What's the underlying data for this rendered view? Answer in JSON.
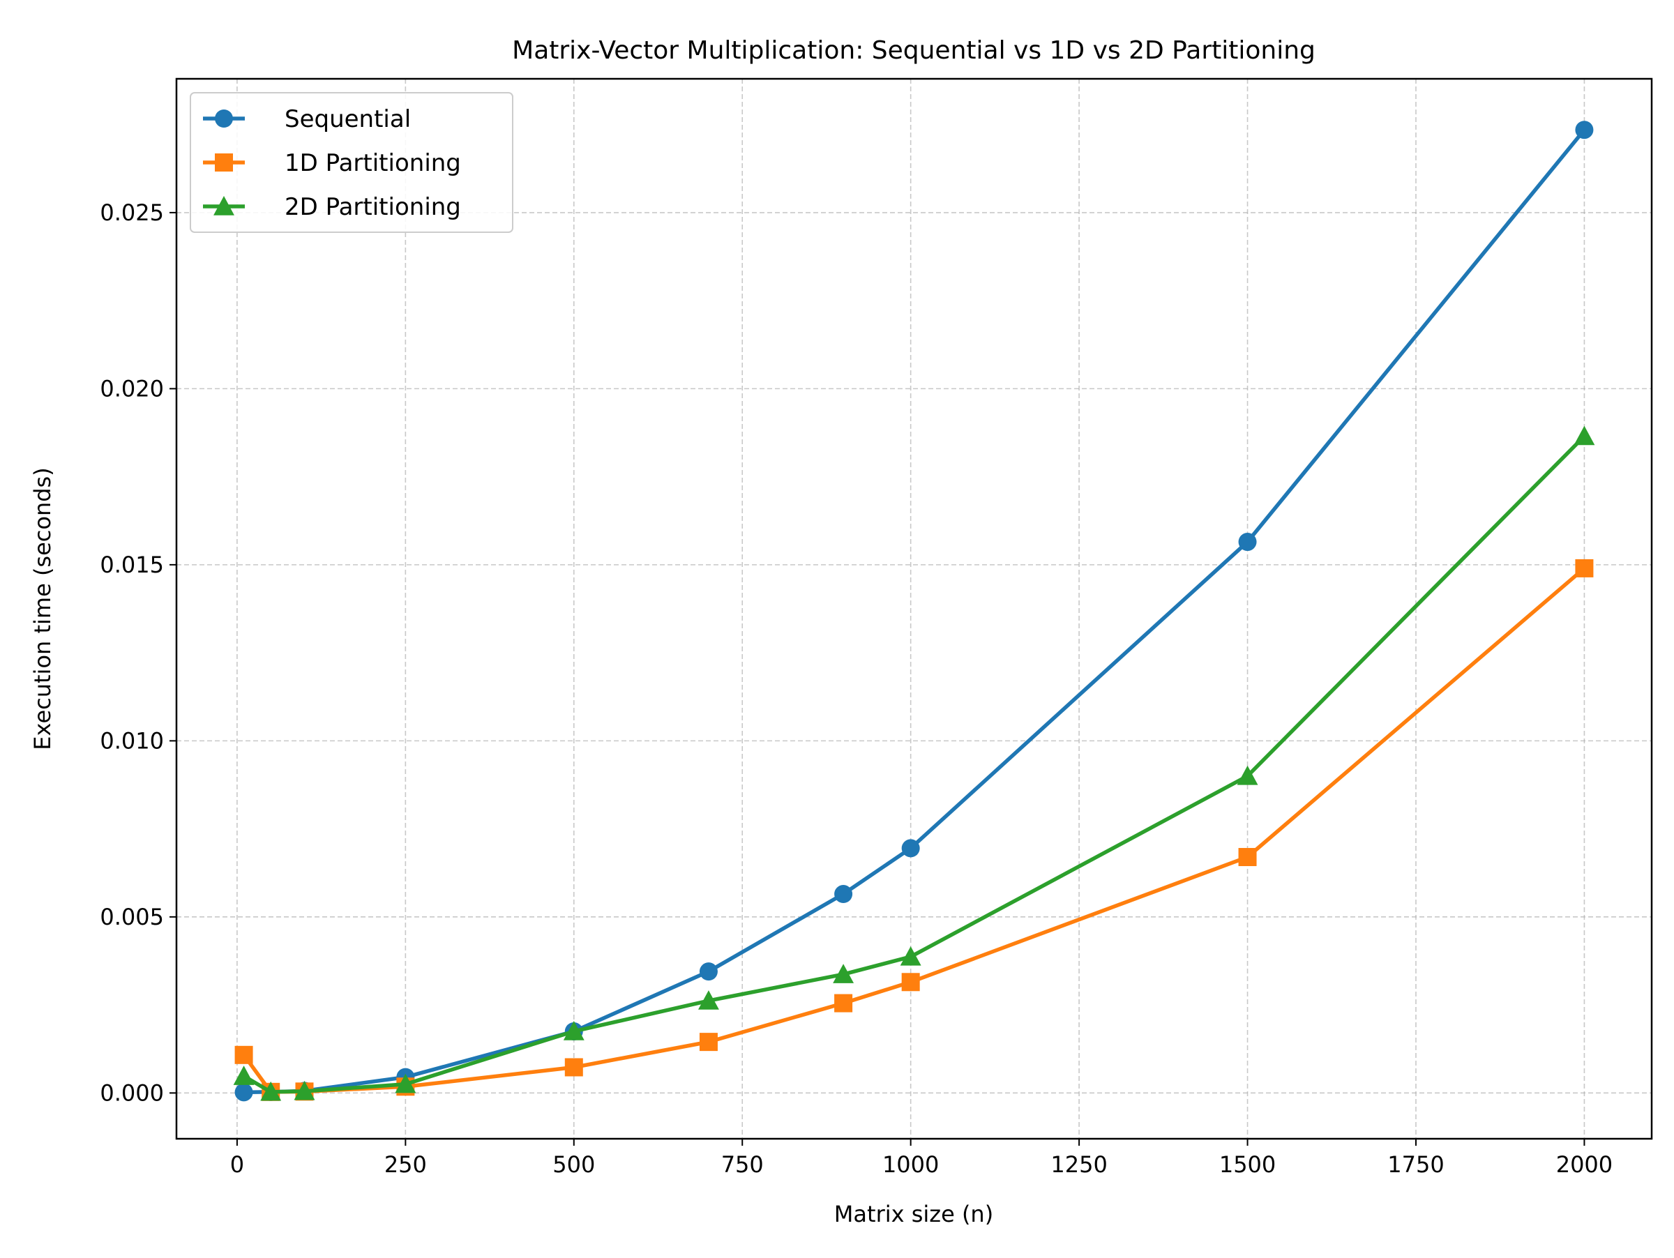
{
  "chart_data": {
    "type": "line",
    "title": "Matrix-Vector Multiplication: Sequential vs 1D vs 2D Partitioning",
    "xlabel": "Matrix size (n)",
    "ylabel": "Execution time (seconds)",
    "xlim": [
      -90,
      2100
    ],
    "ylim": [
      -0.0013,
      0.0288
    ],
    "x_ticks": [
      0,
      250,
      500,
      750,
      1000,
      1250,
      1500,
      1750,
      2000
    ],
    "x_tick_labels": [
      "0",
      "250",
      "500",
      "750",
      "1000",
      "1250",
      "1500",
      "1750",
      "2000"
    ],
    "y_ticks": [
      0.0,
      0.005,
      0.01,
      0.015,
      0.02,
      0.025
    ],
    "y_tick_labels": [
      "0.000",
      "0.005",
      "0.010",
      "0.015",
      "0.020",
      "0.025"
    ],
    "grid": true,
    "legend_position": "top-left",
    "x": [
      10,
      50,
      100,
      250,
      500,
      700,
      900,
      1000,
      1500,
      2000
    ],
    "series": [
      {
        "name": "Sequential",
        "color": "#1f77b4",
        "marker": "circle",
        "values": [
          2e-05,
          3e-05,
          6e-05,
          0.00045,
          0.00175,
          0.00345,
          0.00565,
          0.00695,
          0.01565,
          0.02735
        ]
      },
      {
        "name": "1D Partitioning",
        "color": "#ff7f0e",
        "marker": "square",
        "values": [
          0.00108,
          3e-05,
          4e-05,
          0.00018,
          0.00073,
          0.00145,
          0.00255,
          0.00315,
          0.0067,
          0.0149
        ]
      },
      {
        "name": "2D Partitioning",
        "color": "#2ca02c",
        "marker": "triangle",
        "values": [
          0.00048,
          3e-05,
          5e-05,
          0.00025,
          0.00175,
          0.00262,
          0.00337,
          0.00387,
          0.009,
          0.01865
        ]
      }
    ]
  }
}
